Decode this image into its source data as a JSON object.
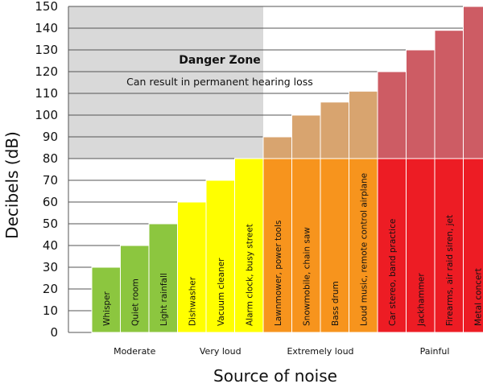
{
  "chart_data": {
    "type": "bar",
    "title": "",
    "xlabel": "Source of noise",
    "ylabel": "Decibels (dB)",
    "ylim": [
      0,
      150
    ],
    "yticks": [
      0,
      10,
      20,
      30,
      40,
      50,
      60,
      70,
      80,
      90,
      100,
      110,
      120,
      130,
      140,
      150
    ],
    "grid": true,
    "categories": [
      "Whisper",
      "Quiet room",
      "Light rainfall",
      "Dishwasher",
      "Vacuum cleaner",
      "Alarm clock, busy street",
      "Lawnmower, power tools",
      "Snowmobile, chain saw",
      "Bass drum",
      "Loud music, remote control airplane",
      "Car stereo, band practice",
      "Jackhammer",
      "Firearms, air raid siren, jet",
      "Metal concert"
    ],
    "values": [
      30,
      40,
      50,
      60,
      70,
      80,
      90,
      100,
      106,
      111,
      120,
      130,
      139,
      150
    ],
    "groups": [
      {
        "label": "Moderate",
        "color": "#8cc63f",
        "start": 0,
        "end": 2
      },
      {
        "label": "Very loud",
        "color": "#ffff00",
        "start": 3,
        "end": 5
      },
      {
        "label": "Extremely loud",
        "color": "#f7941d",
        "start": 6,
        "end": 9
      },
      {
        "label": "Painful",
        "color": "#ed1c24",
        "start": 10,
        "end": 13
      }
    ],
    "danger_zone": {
      "threshold": 80,
      "title": "Danger Zone",
      "subtitle": "Can result in permanent hearing loss",
      "fill_color": "#d9d9d9"
    },
    "colors": {
      "moderate_above": "#8cc63f",
      "orange_above": "#d8a46f",
      "red_above": "#cd5c64",
      "grid": "#555555"
    }
  }
}
